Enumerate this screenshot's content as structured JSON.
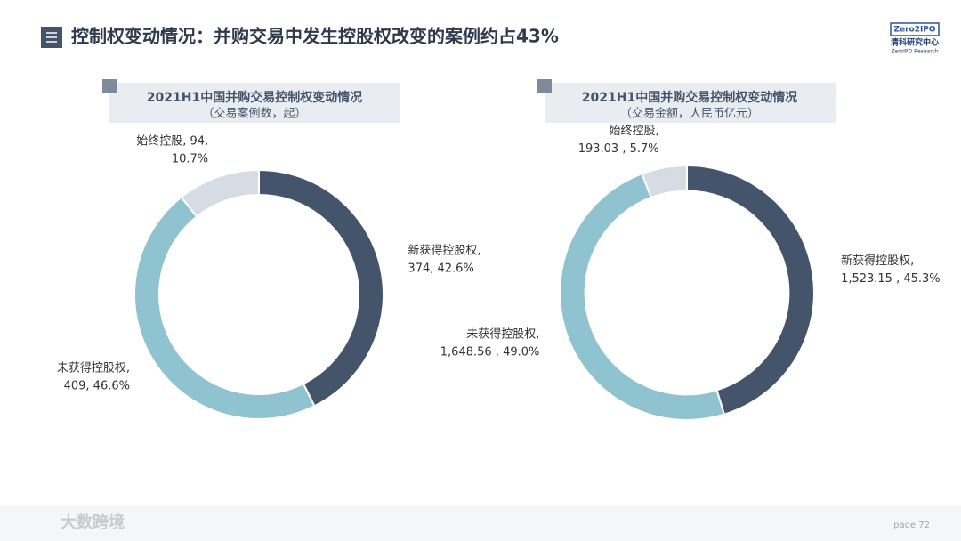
{
  "header": {
    "title": "控制权变动情况：并购交易中发生控股权改变的案例约占43%",
    "logo": {
      "brand": "Zero2IPO",
      "name": "清科研究中心",
      "english": "ZeroIPO Research"
    }
  },
  "chart_data": [
    {
      "type": "donut",
      "title": "2021H1中国并购交易控制权变动情况",
      "subtitle": "（交易案例数，起）",
      "values": [
        374,
        409,
        94
      ],
      "value_labels": [
        "新获得控股权,\n374, 42.6%",
        "未获得控股权,\n409, 46.6%",
        "始终控股, 94,\n10.7%"
      ],
      "colors": [
        "#44546a",
        "#8fc3d0",
        "#d6dce4"
      ]
    },
    {
      "type": "donut",
      "title": "2021H1中国并购交易控制权变动情况",
      "subtitle": "（交易金额，人民币亿元）",
      "values": [
        1523.15,
        1648.56,
        193.03
      ],
      "value_labels": [
        "新获得控股权,\n1,523.15 , 45.3%",
        "未获得控股权,\n1,648.56 , 49.0%",
        "始终控股,\n193.03 , 5.7%"
      ],
      "colors": [
        "#44546a",
        "#8fc3d0",
        "#d6dce4"
      ]
    }
  ],
  "footer": {
    "page": "page  72",
    "watermark": "大数跨境"
  }
}
